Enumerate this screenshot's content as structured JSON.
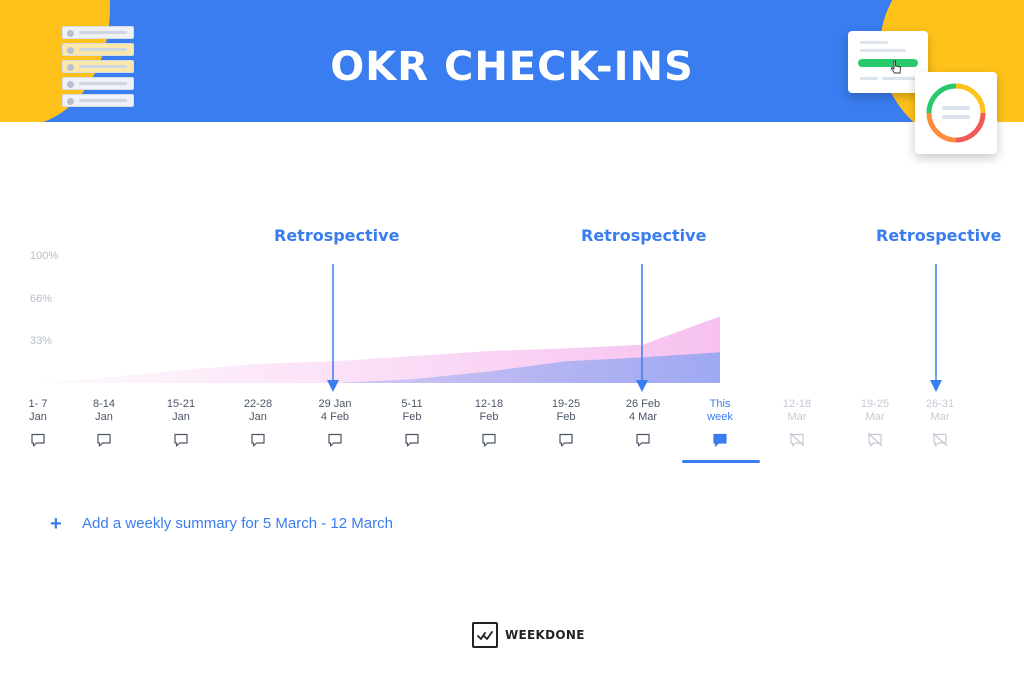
{
  "header": {
    "title": "OKR CHECK-INS",
    "background_color": "#3a7df0",
    "accent_color": "#ffc21a"
  },
  "chart": {
    "y_ticks": [
      "100%",
      "66%",
      "33%"
    ],
    "retrospective_labels": [
      "Retrospective",
      "Retrospective",
      "Retrospective"
    ],
    "weeks": [
      {
        "line1": "1- 7",
        "line2": "Jan",
        "state": "past",
        "icon": "comment-icon"
      },
      {
        "line1": "8-14",
        "line2": "Jan",
        "state": "past",
        "icon": "comment-icon"
      },
      {
        "line1": "15-21",
        "line2": "Jan",
        "state": "past",
        "icon": "comment-icon"
      },
      {
        "line1": "22-28",
        "line2": "Jan",
        "state": "past",
        "icon": "comment-icon"
      },
      {
        "line1": "29 Jan",
        "line2": "4 Feb",
        "state": "past",
        "icon": "comment-icon"
      },
      {
        "line1": "5-11",
        "line2": "Feb",
        "state": "past",
        "icon": "comment-icon"
      },
      {
        "line1": "12-18",
        "line2": "Feb",
        "state": "past",
        "icon": "comment-icon"
      },
      {
        "line1": "19-25",
        "line2": "Feb",
        "state": "past",
        "icon": "comment-icon"
      },
      {
        "line1": "26 Feb",
        "line2": "4 Mar",
        "state": "past",
        "icon": "comment-icon"
      },
      {
        "line1": "This",
        "line2": "week",
        "state": "current",
        "icon": "comment-filled-icon"
      },
      {
        "line1": "12-18",
        "line2": "Mar",
        "state": "future",
        "icon": "comment-disabled-icon"
      },
      {
        "line1": "19-25",
        "line2": "Mar",
        "state": "future",
        "icon": "comment-disabled-icon"
      },
      {
        "line1": "26-31",
        "line2": "Mar",
        "state": "future",
        "icon": "comment-disabled-icon"
      }
    ],
    "series_colors": {
      "pink": "#f3a6e8",
      "blue": "#8fa6f2"
    },
    "series": [
      {
        "values": [
          0,
          4,
          10,
          15,
          17,
          21,
          25,
          27,
          30,
          52
        ]
      },
      {
        "values": [
          0,
          0,
          0,
          0,
          0,
          3,
          9,
          17,
          20,
          24
        ]
      }
    ]
  },
  "action": {
    "add_summary_label": "Add a weekly summary for 5 March - 12 March",
    "icon": "plus-icon"
  },
  "footer": {
    "brand": "WEEKDONE"
  }
}
